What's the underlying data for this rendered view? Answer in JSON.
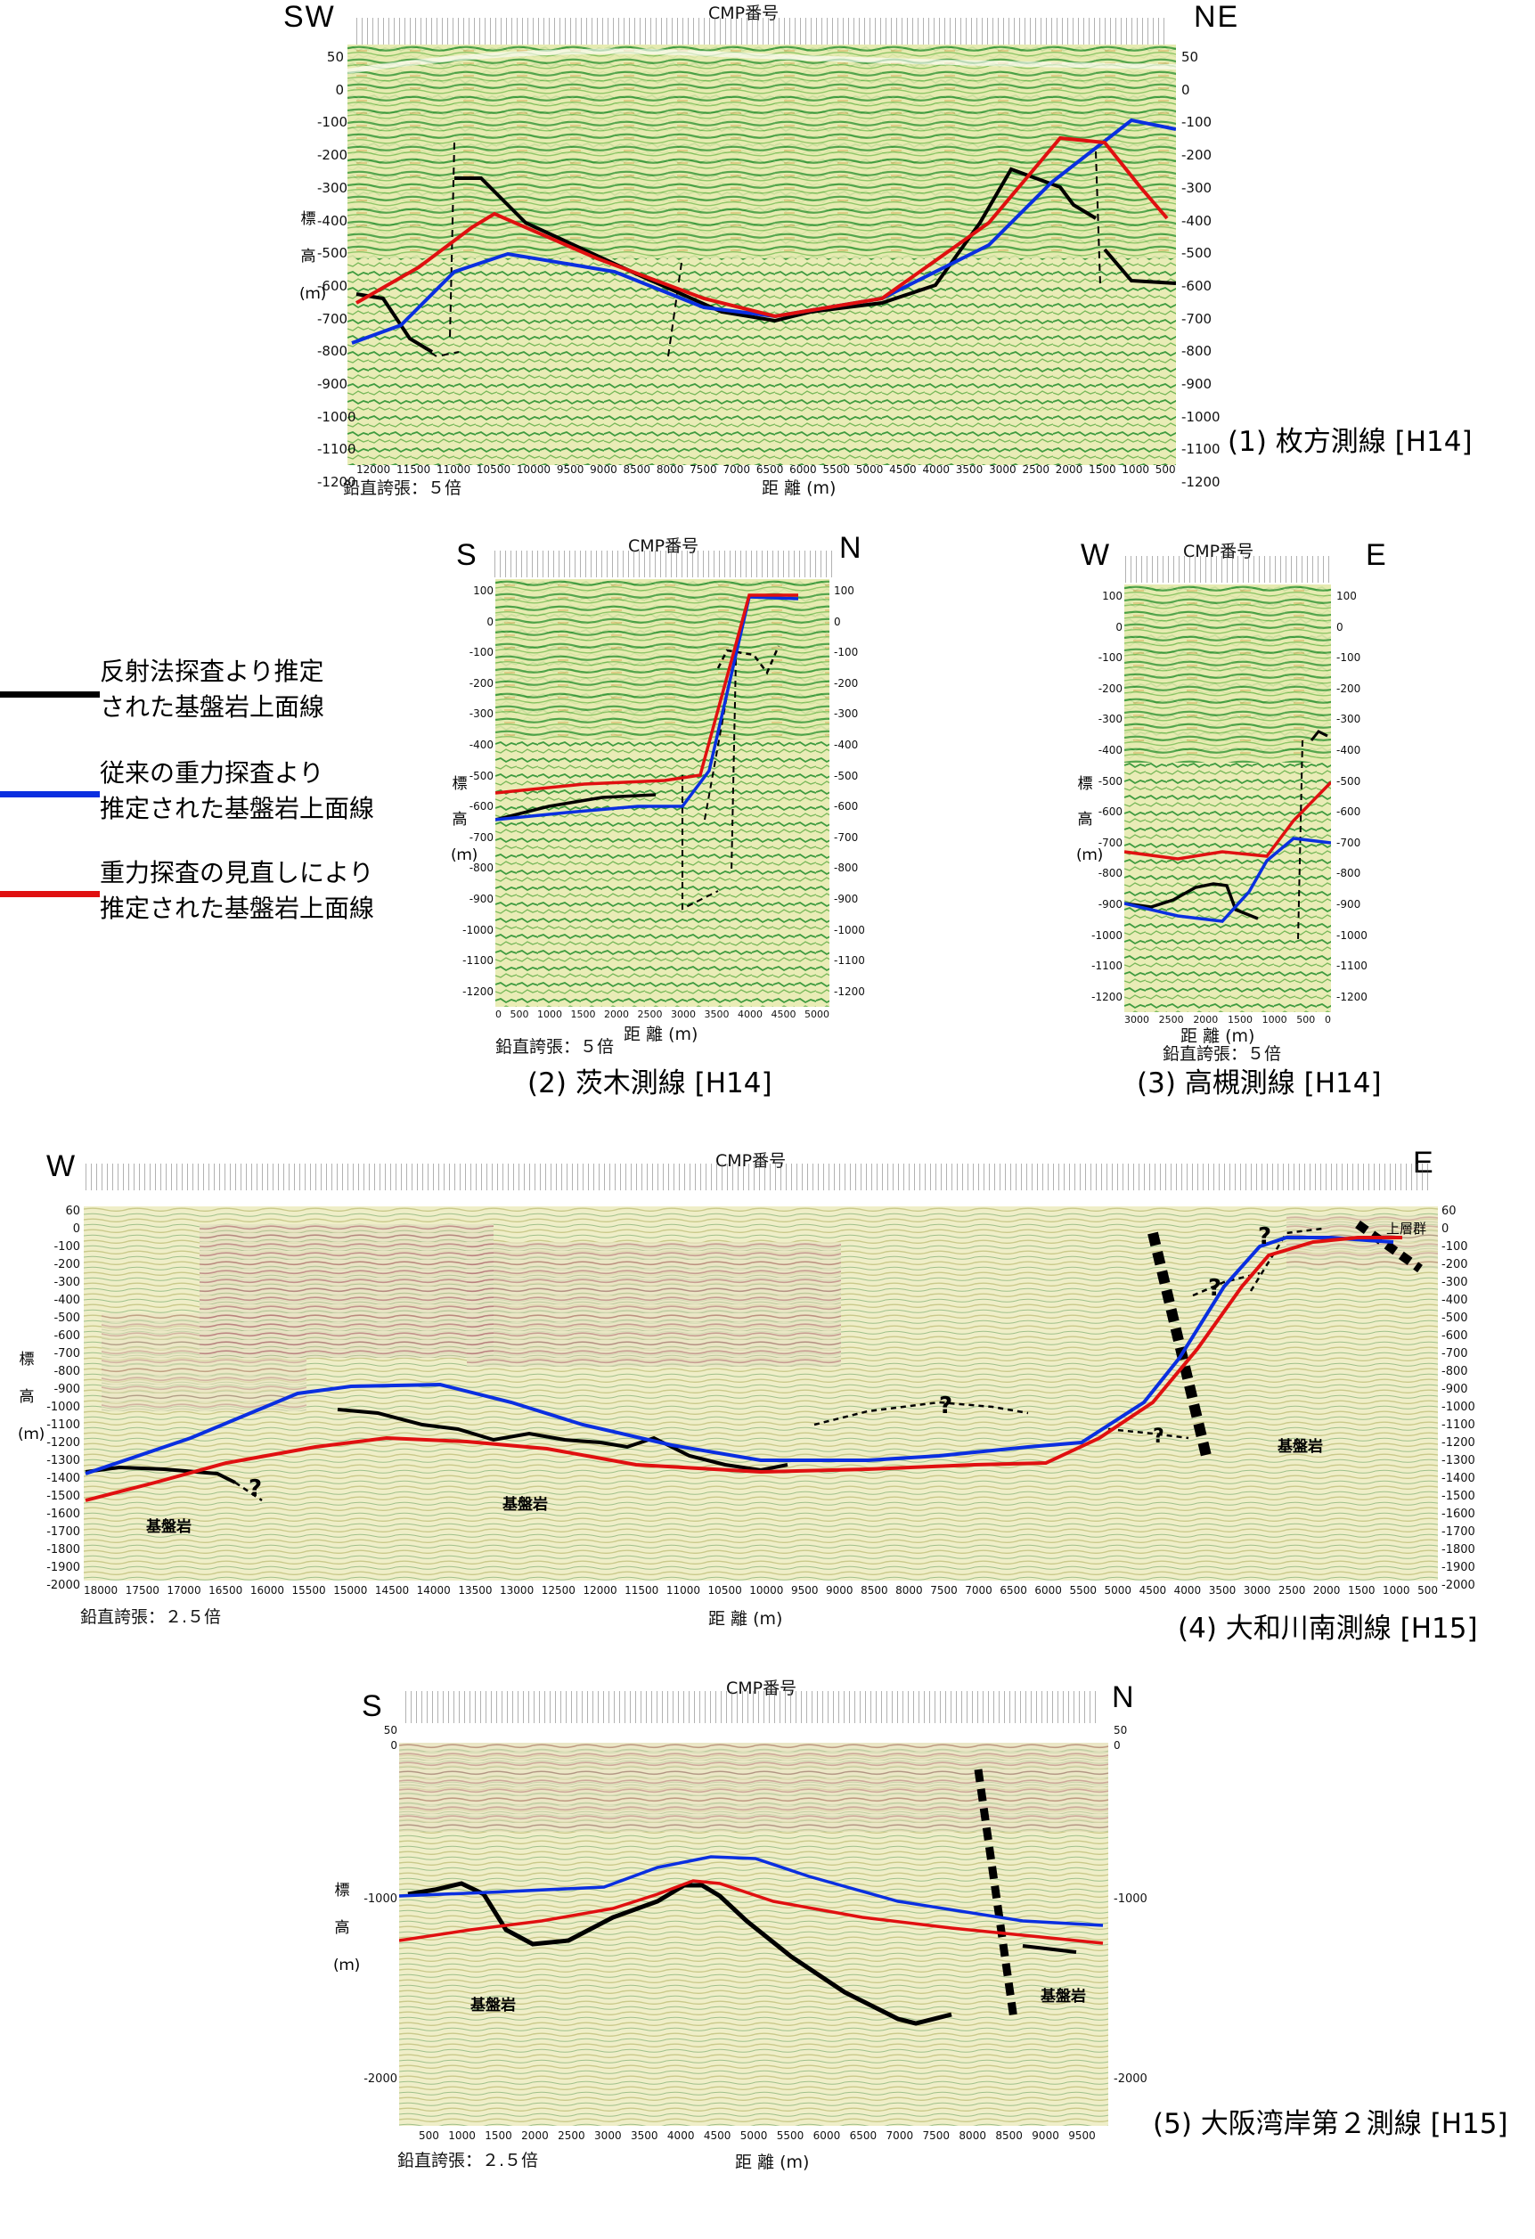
{
  "colors": {
    "reflection_line": "#000000",
    "old_gravity_line": "#0a2fe0",
    "revised_gravity_line": "#e01010",
    "seismic_green": "#3c9a3c",
    "seismic_yellow": "#e8e6a2",
    "seismic_red": "#b06060"
  },
  "legend": [
    {
      "line": "black",
      "text": "反射法探査より推定\nされた基盤岩上面線"
    },
    {
      "line": "blue",
      "text": "従来の重力探査より\n推定された基盤岩上面線"
    },
    {
      "line": "red",
      "text": "重力探査の見直しにより\n推定された基盤岩上面線"
    }
  ],
  "common": {
    "cmp_label": "CMP番号",
    "dist_label": "距 離 (m)",
    "elev_label": [
      "標",
      "高",
      "(ｍ)"
    ]
  },
  "panels": [
    {
      "id": "hirakata",
      "caption": "(1) 枚方測線 [H14]",
      "left_dir": "SW",
      "right_dir": "NE",
      "exaggeration": "鉛直誇張：５倍",
      "y_ticks": [
        "50",
        "0",
        "-100",
        "-200",
        "-300",
        "-400",
        "-500",
        "-600",
        "-700",
        "-800",
        "-900",
        "-1000",
        "-1100",
        "-1200"
      ],
      "x_ticks": [
        "12000",
        "11500",
        "11000",
        "10500",
        "10000",
        "9500",
        "9000",
        "8500",
        "8000",
        "7500",
        "7000",
        "6500",
        "6000",
        "5500",
        "5000",
        "4500",
        "4000",
        "3500",
        "3000",
        "2500",
        "2000",
        "1500",
        "1000",
        "500"
      ]
    },
    {
      "id": "ibaraki",
      "caption": "(2) 茨木測線 [H14]",
      "left_dir": "S",
      "right_dir": "N",
      "exaggeration": "鉛直誇張：５倍",
      "y_ticks": [
        "100",
        "0",
        "-100",
        "-200",
        "-300",
        "-400",
        "-500",
        "-600",
        "-700",
        "-800",
        "-900",
        "-1000",
        "-1100",
        "-1200"
      ],
      "x_ticks": [
        "0",
        "500",
        "1000",
        "1500",
        "2000",
        "2500",
        "3000",
        "3500",
        "4000",
        "4500",
        "5000"
      ]
    },
    {
      "id": "takatsuki",
      "caption": "(3) 高槻測線 [H14]",
      "left_dir": "W",
      "right_dir": "E",
      "exaggeration": "鉛直誇張：５倍",
      "y_ticks": [
        "100",
        "0",
        "-100",
        "-200",
        "-300",
        "-400",
        "-500",
        "-600",
        "-700",
        "-800",
        "-900",
        "-1000",
        "-1100",
        "-1200"
      ],
      "x_ticks": [
        "3000",
        "2500",
        "2000",
        "1500",
        "1000",
        "500",
        "0"
      ]
    },
    {
      "id": "yamato",
      "caption": "(4) 大和川南測線 [H15]",
      "left_dir": "W",
      "right_dir": "E",
      "exaggeration": "鉛直誇張：２.５倍",
      "y_ticks": [
        "60",
        "0",
        "-100",
        "-200",
        "-300",
        "-400",
        "-500",
        "-600",
        "-700",
        "-800",
        "-900",
        "-1000",
        "-1100",
        "-1200",
        "-1300",
        "-1400",
        "-1500",
        "-1600",
        "-1700",
        "-1800",
        "-1900",
        "-2000"
      ],
      "x_ticks": [
        "18000",
        "17500",
        "17000",
        "16500",
        "16000",
        "15500",
        "15000",
        "14500",
        "14000",
        "13500",
        "13000",
        "12500",
        "12000",
        "11500",
        "11000",
        "10500",
        "10000",
        "9500",
        "9000",
        "8500",
        "8000",
        "7500",
        "7000",
        "6500",
        "6000",
        "5500",
        "5000",
        "4500",
        "4000",
        "3500",
        "3000",
        "2500",
        "2000",
        "1500",
        "1000",
        "500"
      ],
      "annotations": [
        "基盤岩",
        "基盤岩",
        "基盤岩",
        "上層群",
        "?"
      ]
    },
    {
      "id": "osakabay",
      "caption": "(5) 大阪湾岸第２測線 [H15]",
      "left_dir": "S",
      "right_dir": "N",
      "exaggeration": "鉛直誇張：２.５倍",
      "y_ticks": [
        "50",
        "0",
        "-1000",
        "-2000"
      ],
      "x_ticks": [
        "500",
        "1000",
        "1500",
        "2000",
        "2500",
        "3000",
        "3500",
        "4000",
        "4500",
        "5000",
        "5500",
        "6000",
        "6500",
        "7000",
        "7500",
        "8000",
        "8500",
        "9000",
        "9500"
      ],
      "annotations": [
        "基盤岩",
        "基盤岩"
      ]
    }
  ]
}
